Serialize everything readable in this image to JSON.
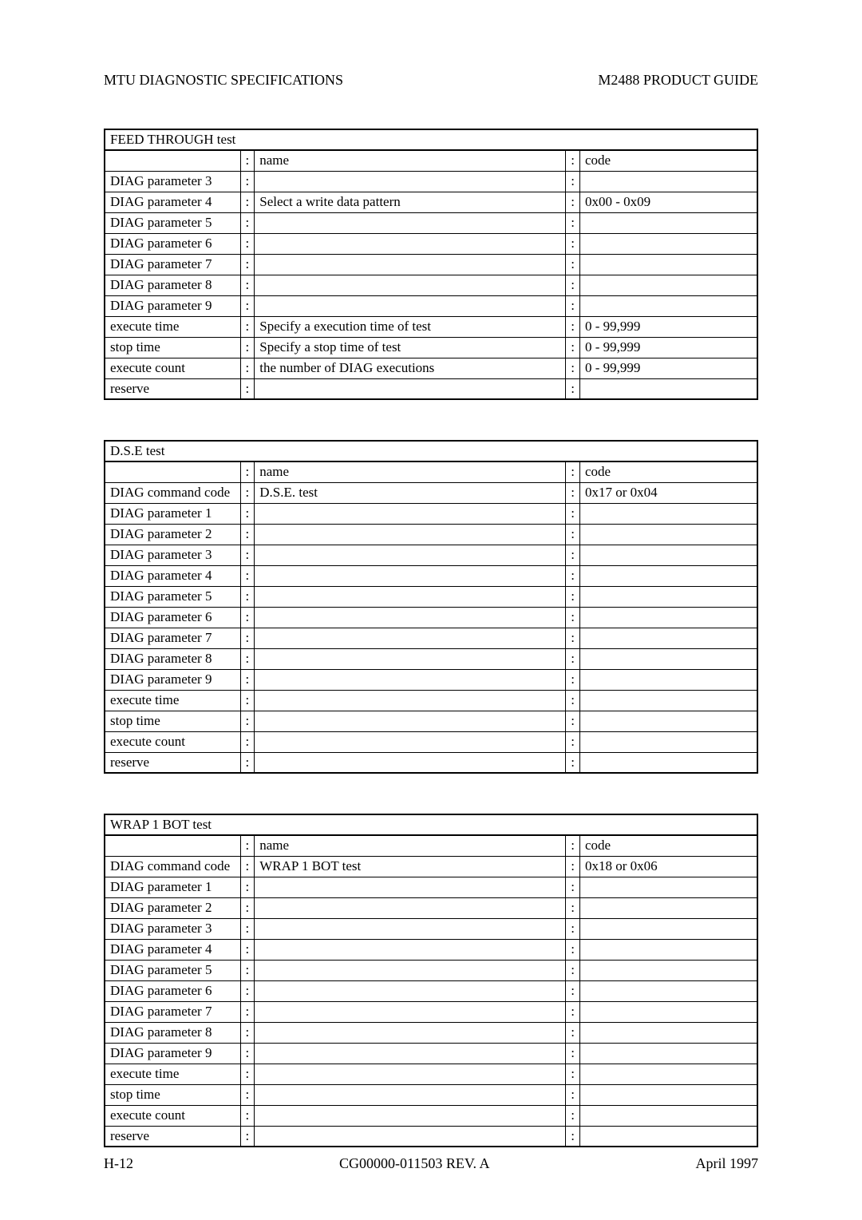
{
  "header": {
    "left": "MTU DIAGNOSTIC SPECIFICATIONS",
    "right": "M2488 PRODUCT GUIDE"
  },
  "tables": [
    {
      "title": "FEED THROUGH test",
      "header_name": "name",
      "header_code": "code",
      "rows": [
        {
          "label": "DIAG parameter 3",
          "name": "",
          "code": ""
        },
        {
          "label": "DIAG parameter 4",
          "name": "Select a write data pattern",
          "code": "0x00 - 0x09"
        },
        {
          "label": "DIAG parameter 5",
          "name": "",
          "code": ""
        },
        {
          "label": "DIAG parameter 6",
          "name": "",
          "code": ""
        },
        {
          "label": "DIAG parameter 7",
          "name": "",
          "code": ""
        },
        {
          "label": "DIAG parameter 8",
          "name": "",
          "code": ""
        },
        {
          "label": "DIAG parameter 9",
          "name": "",
          "code": ""
        },
        {
          "label": "execute time",
          "name": "Specify a execution time of test",
          "code": "0 - 99,999"
        },
        {
          "label": "stop time",
          "name": "Specify a stop time of test",
          "code": "0 - 99,999"
        },
        {
          "label": "execute count",
          "name": "the number of DIAG executions",
          "code": "0 - 99,999"
        },
        {
          "label": "reserve",
          "name": "",
          "code": ""
        }
      ]
    },
    {
      "title": "D.S.E test",
      "header_name": "name",
      "header_code": "code",
      "rows": [
        {
          "label": "DIAG command code",
          "name": "D.S.E. test",
          "code": "0x17 or 0x04"
        },
        {
          "label": "DIAG parameter 1",
          "name": "",
          "code": ""
        },
        {
          "label": "DIAG parameter 2",
          "name": "",
          "code": ""
        },
        {
          "label": "DIAG parameter 3",
          "name": "",
          "code": ""
        },
        {
          "label": "DIAG parameter 4",
          "name": "",
          "code": ""
        },
        {
          "label": "DIAG parameter 5",
          "name": "",
          "code": ""
        },
        {
          "label": "DIAG parameter 6",
          "name": "",
          "code": ""
        },
        {
          "label": "DIAG parameter 7",
          "name": "",
          "code": ""
        },
        {
          "label": "DIAG parameter 8",
          "name": "",
          "code": ""
        },
        {
          "label": "DIAG parameter 9",
          "name": "",
          "code": ""
        },
        {
          "label": "execute time",
          "name": "",
          "code": ""
        },
        {
          "label": "stop time",
          "name": "",
          "code": ""
        },
        {
          "label": "execute count",
          "name": "",
          "code": ""
        },
        {
          "label": "reserve",
          "name": "",
          "code": ""
        }
      ]
    },
    {
      "title": "WRAP 1 BOT test",
      "header_name": "name",
      "header_code": "code",
      "rows": [
        {
          "label": "DIAG command code",
          "name": "WRAP 1 BOT test",
          "code": "0x18 or 0x06"
        },
        {
          "label": "DIAG parameter 1",
          "name": "",
          "code": ""
        },
        {
          "label": "DIAG parameter 2",
          "name": "",
          "code": ""
        },
        {
          "label": "DIAG parameter 3",
          "name": "",
          "code": ""
        },
        {
          "label": "DIAG parameter 4",
          "name": "",
          "code": ""
        },
        {
          "label": "DIAG parameter 5",
          "name": "",
          "code": ""
        },
        {
          "label": "DIAG parameter 6",
          "name": "",
          "code": ""
        },
        {
          "label": "DIAG parameter 7",
          "name": "",
          "code": ""
        },
        {
          "label": "DIAG parameter 8",
          "name": "",
          "code": ""
        },
        {
          "label": "DIAG parameter 9",
          "name": "",
          "code": ""
        },
        {
          "label": "execute time",
          "name": "",
          "code": ""
        },
        {
          "label": "stop time",
          "name": "",
          "code": ""
        },
        {
          "label": "execute count",
          "name": "",
          "code": ""
        },
        {
          "label": "reserve",
          "name": "",
          "code": ""
        }
      ]
    }
  ],
  "footer": {
    "left": "H-12",
    "center": "CG00000-011503 REV. A",
    "right": "April 1997"
  }
}
